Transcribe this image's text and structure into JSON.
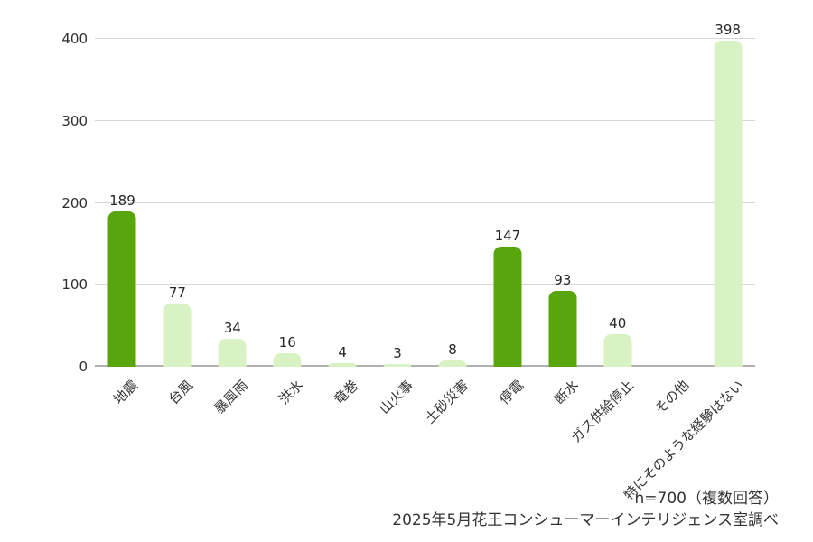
{
  "colors": {
    "bar_primary": "#58a50c",
    "bar_secondary": "#d9f2c4",
    "grid": "#d6d6d6",
    "axis_line": "#b0b0b0",
    "text": "#323232"
  },
  "chart_data": {
    "type": "bar",
    "title": "",
    "xlabel": "",
    "ylabel": "",
    "categories": [
      "地震",
      "台風",
      "暴風雨",
      "洪水",
      "竜巻",
      "山火事",
      "土砂災害",
      "停電",
      "断水",
      "ガス供給停止",
      "その他",
      "特にそのような経験はない"
    ],
    "values": [
      189,
      77,
      34,
      16,
      4,
      3,
      8,
      147,
      93,
      40,
      0,
      398
    ],
    "value_labels": [
      "189",
      "77",
      "34",
      "16",
      "4",
      "3",
      "8",
      "147",
      "93",
      "40",
      "",
      "398"
    ],
    "emphasized": [
      true,
      false,
      false,
      false,
      false,
      false,
      false,
      true,
      true,
      false,
      false,
      false
    ],
    "ylim": [
      0,
      400
    ],
    "yticks": [
      0,
      100,
      200,
      300,
      400
    ],
    "grid": true,
    "legend_position": "none"
  },
  "footer": {
    "note": "n=700（複数回答）",
    "source": "2025年5月花王コンシューマーインテリジェンス室調べ"
  }
}
